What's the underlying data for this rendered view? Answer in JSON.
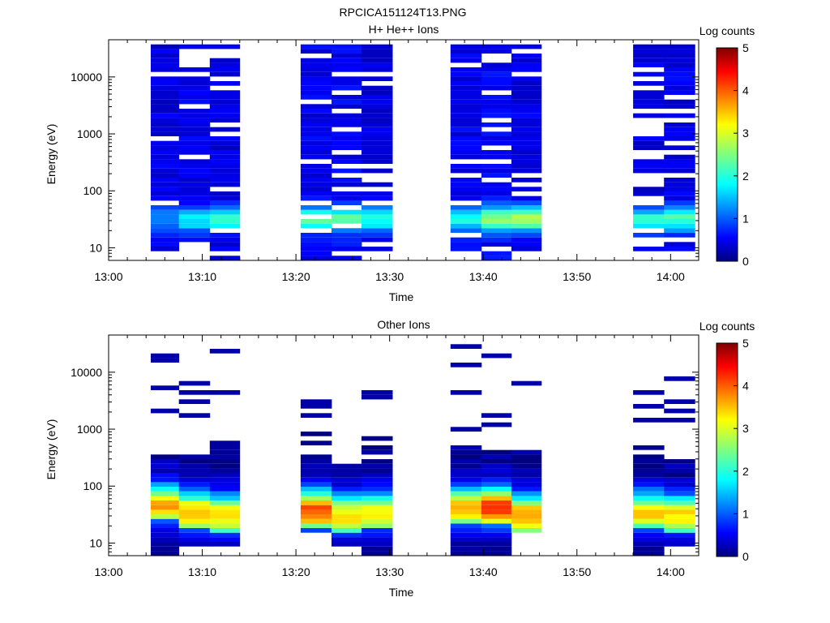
{
  "figure": {
    "title": "RPCICA151124T13.PNG"
  },
  "chart_data": [
    {
      "type": "heatmap",
      "title": "H+ He++ Ions",
      "xlabel": "Time",
      "ylabel": "Energy (eV)",
      "y_scale": "log",
      "ylim": [
        6,
        45000
      ],
      "x_ticks": [
        "13:00",
        "13:10",
        "13:20",
        "13:30",
        "13:40",
        "13:50",
        "14:00"
      ],
      "y_ticks": [
        "10",
        "100",
        "1000",
        "10000"
      ],
      "colorbar": {
        "label": "Log counts",
        "range": [
          0,
          5
        ],
        "ticks": [
          "0",
          "1",
          "2",
          "3",
          "4",
          "5"
        ],
        "colormap": "jet"
      },
      "time_range_min": [
        0,
        63
      ],
      "time_bins_min": [
        [
          4.5,
          7.5
        ],
        [
          7.5,
          10.8
        ],
        [
          10.8,
          14.0
        ],
        [
          20.5,
          23.8
        ],
        [
          23.8,
          27.0
        ],
        [
          27.0,
          30.3
        ],
        [
          36.5,
          39.8
        ],
        [
          39.8,
          43.0
        ],
        [
          43.0,
          46.2
        ],
        [
          56.0,
          59.3
        ],
        [
          59.3,
          62.6
        ]
      ],
      "column_profiles": [
        {
          "emin": 9,
          "emax": 40000,
          "low_peak": 0.9,
          "high_level": 0.3,
          "gaps": 0.12
        },
        {
          "emin": 12,
          "emax": 35000,
          "low_peak": 1.3,
          "high_level": 0.35,
          "gaps": 0.2
        },
        {
          "emin": 6,
          "emax": 40000,
          "low_peak": 1.6,
          "high_level": 0.3,
          "gaps": 0.25
        },
        {
          "emin": 6,
          "emax": 40000,
          "low_peak": 1.9,
          "high_level": 0.35,
          "gaps": 0.1
        },
        {
          "emin": 6,
          "emax": 35000,
          "low_peak": 1.8,
          "high_level": 0.4,
          "gaps": 0.15
        },
        {
          "emin": 9,
          "emax": 40000,
          "low_peak": 1.5,
          "high_level": 0.3,
          "gaps": 0.2
        },
        {
          "emin": 6,
          "emax": 40000,
          "low_peak": 1.4,
          "high_level": 0.35,
          "gaps": 0.15
        },
        {
          "emin": 6,
          "emax": 35000,
          "low_peak": 2.0,
          "high_level": 0.4,
          "gaps": 0.2
        },
        {
          "emin": 9,
          "emax": 40000,
          "low_peak": 2.2,
          "high_level": 0.35,
          "gaps": 0.15
        },
        {
          "emin": 9,
          "emax": 40000,
          "low_peak": 1.6,
          "high_level": 0.3,
          "gaps": 0.3
        },
        {
          "emin": 9,
          "emax": 35000,
          "low_peak": 1.7,
          "high_level": 0.35,
          "gaps": 0.15
        }
      ]
    },
    {
      "type": "heatmap",
      "title": "Other Ions",
      "xlabel": "Time",
      "ylabel": "Energy (eV)",
      "y_scale": "log",
      "ylim": [
        6,
        45000
      ],
      "x_ticks": [
        "13:00",
        "13:10",
        "13:20",
        "13:30",
        "13:40",
        "13:50",
        "14:00"
      ],
      "y_ticks": [
        "10",
        "100",
        "1000",
        "10000"
      ],
      "colorbar": {
        "label": "Log counts",
        "range": [
          0,
          5
        ],
        "ticks": [
          "0",
          "1",
          "2",
          "3",
          "4",
          "5"
        ],
        "colormap": "jet"
      },
      "time_range_min": [
        0,
        63
      ],
      "time_bins_min": [
        [
          4.5,
          7.5
        ],
        [
          7.5,
          10.8
        ],
        [
          10.8,
          14.0
        ],
        [
          20.5,
          23.8
        ],
        [
          23.8,
          27.0
        ],
        [
          27.0,
          30.3
        ],
        [
          36.5,
          39.8
        ],
        [
          39.8,
          43.0
        ],
        [
          43.0,
          46.2
        ],
        [
          56.0,
          59.3
        ],
        [
          59.3,
          62.6
        ]
      ],
      "column_profiles": [
        {
          "emin": 6,
          "emax": 420,
          "peak_energy": 45,
          "peak": 3.4,
          "sparse": [
            2200,
            5200,
            16000,
            18000
          ]
        },
        {
          "emin": 9,
          "emax": 350,
          "peak_energy": 33,
          "peak": 3.5,
          "sparse": [
            1900,
            3300,
            4200,
            6300
          ]
        },
        {
          "emin": 9,
          "emax": 600,
          "peak_energy": 30,
          "peak": 3.3,
          "sparse": [
            4600,
            24000
          ]
        },
        {
          "emin": 15,
          "emax": 850,
          "peak_energy": 36,
          "peak": 3.9,
          "sparse": [
            1600,
            2300,
            2900
          ]
        },
        {
          "emin": 9,
          "emax": 320,
          "peak_energy": 30,
          "peak": 3.2,
          "sparse": []
        },
        {
          "emin": 6,
          "emax": 700,
          "peak_energy": 33,
          "peak": 3.2,
          "sparse": [
            3600,
            4400
          ]
        },
        {
          "emin": 6,
          "emax": 500,
          "peak_energy": 40,
          "peak": 3.4,
          "sparse": [
            950,
            4300,
            14500,
            26000
          ]
        },
        {
          "emin": 6,
          "emax": 410,
          "peak_energy": 40,
          "peak": 4.1,
          "sparse": [
            1300,
            1700,
            19000
          ]
        },
        {
          "emin": 15,
          "emax": 580,
          "peak_energy": 30,
          "peak": 3.6,
          "sparse": [
            6300
          ]
        },
        {
          "emin": 6,
          "emax": 500,
          "peak_energy": 33,
          "peak": 3.2,
          "sparse": [
            1500,
            2400,
            4600
          ]
        },
        {
          "emin": 9,
          "emax": 400,
          "peak_energy": 30,
          "peak": 3.2,
          "sparse": [
            1400,
            2000,
            2800,
            7500
          ]
        }
      ]
    }
  ]
}
